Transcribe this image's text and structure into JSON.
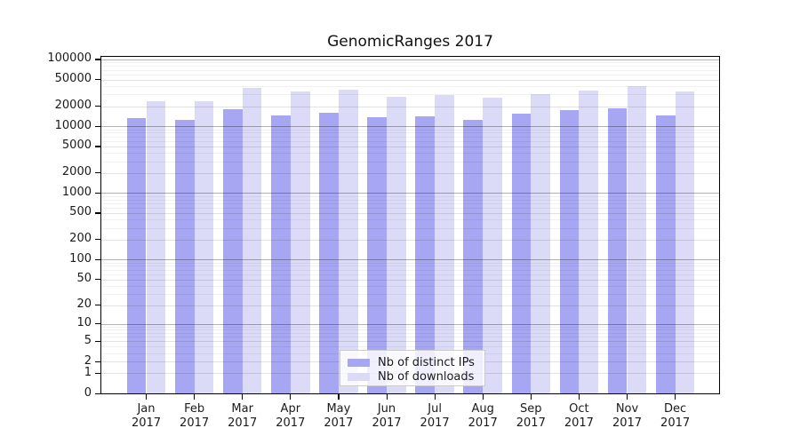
{
  "title": "GenomicRanges 2017",
  "chart_data": {
    "type": "bar",
    "title": "GenomicRanges 2017",
    "xlabel": "",
    "ylabel": "",
    "y_scale": "log(1+x)",
    "ylim": [
      0,
      100000
    ],
    "grid": true,
    "legend_position": "inside-bottom-center",
    "y_ticks": [
      0,
      1,
      2,
      5,
      10,
      20,
      50,
      100,
      200,
      500,
      1000,
      2000,
      5000,
      10000,
      20000,
      50000,
      100000
    ],
    "categories": [
      {
        "month": "Jan",
        "year": "2017"
      },
      {
        "month": "Feb",
        "year": "2017"
      },
      {
        "month": "Mar",
        "year": "2017"
      },
      {
        "month": "Apr",
        "year": "2017"
      },
      {
        "month": "May",
        "year": "2017"
      },
      {
        "month": "Jun",
        "year": "2017"
      },
      {
        "month": "Jul",
        "year": "2017"
      },
      {
        "month": "Aug",
        "year": "2017"
      },
      {
        "month": "Sep",
        "year": "2017"
      },
      {
        "month": "Oct",
        "year": "2017"
      },
      {
        "month": "Nov",
        "year": "2017"
      },
      {
        "month": "Dec",
        "year": "2017"
      }
    ],
    "series": [
      {
        "name": "Nb of distinct IPs",
        "color": "#a6a6f2",
        "values": [
          13200,
          12500,
          18000,
          14600,
          16000,
          13600,
          14200,
          12400,
          15500,
          17600,
          18300,
          14500
        ]
      },
      {
        "name": "Nb of downloads",
        "color": "#dbdbf8",
        "values": [
          23500,
          24000,
          37500,
          33500,
          35400,
          27900,
          29300,
          26600,
          30000,
          34400,
          40000,
          33000
        ]
      }
    ],
    "colors": {
      "distinct_ips_bar": "#a6a6f2",
      "downloads_bar": "#dbdbf8",
      "grid_major": "#b3b3b3",
      "grid_labeled": "#e2e2e2",
      "grid_minor": "#f0f0f0",
      "axis": "#000000",
      "text": "#1a1a1a",
      "background": "#ffffff"
    }
  }
}
